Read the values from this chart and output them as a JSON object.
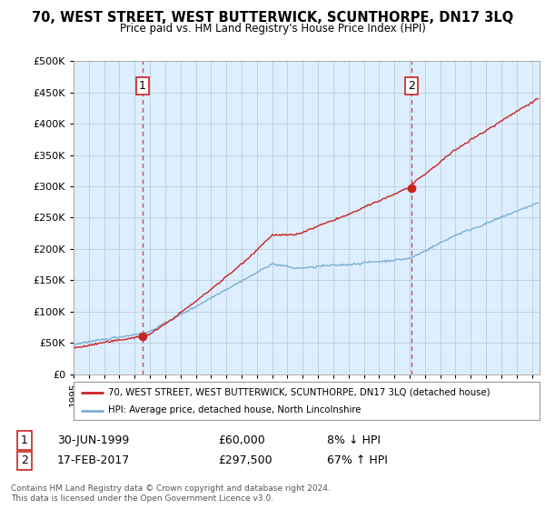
{
  "title": "70, WEST STREET, WEST BUTTERWICK, SCUNTHORPE, DN17 3LQ",
  "subtitle": "Price paid vs. HM Land Registry's House Price Index (HPI)",
  "ylim": [
    0,
    500000
  ],
  "xlim_start": 1995.0,
  "xlim_end": 2025.5,
  "hpi_color": "#7bafd4",
  "price_color": "#cc2222",
  "dashed_color": "#cc2222",
  "sale1_year": 1999.5,
  "sale1_price": 60000,
  "sale2_year": 2017.12,
  "sale2_price": 297500,
  "legend_line1": "70, WEST STREET, WEST BUTTERWICK, SCUNTHORPE, DN17 3LQ (detached house)",
  "legend_line2": "HPI: Average price, detached house, North Lincolnshire",
  "table_row1_num": "1",
  "table_row1_date": "30-JUN-1999",
  "table_row1_price": "£60,000",
  "table_row1_hpi": "8% ↓ HPI",
  "table_row2_num": "2",
  "table_row2_date": "17-FEB-2017",
  "table_row2_price": "£297,500",
  "table_row2_hpi": "67% ↑ HPI",
  "footnote": "Contains HM Land Registry data © Crown copyright and database right 2024.\nThis data is licensed under the Open Government Licence v3.0.",
  "background_color": "#ffffff",
  "plot_bg_color": "#ddeeff",
  "grid_color": "#bbccdd"
}
